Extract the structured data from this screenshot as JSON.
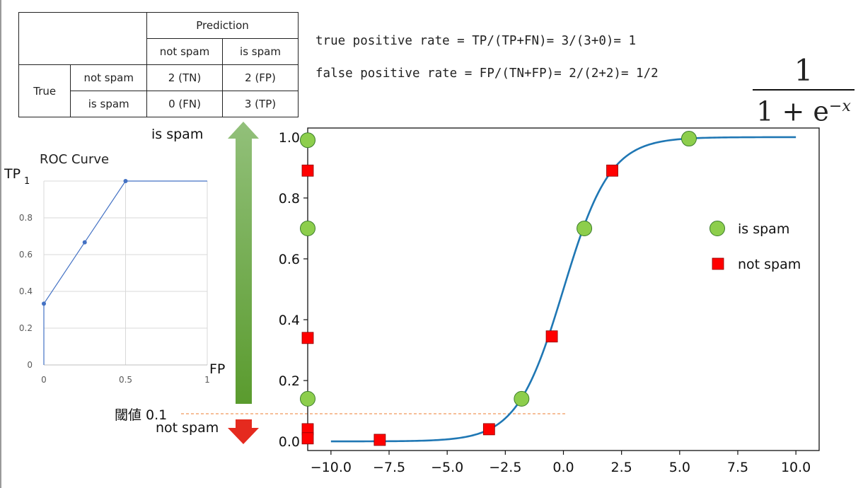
{
  "confusion_matrix": {
    "prediction_header": "Prediction",
    "pred_not_spam": "not spam",
    "pred_is_spam": "is spam",
    "true_header": "True",
    "row_not_spam": "not spam",
    "row_is_spam": "is spam",
    "tn": "2 (TN)",
    "fp": "2 (FP)",
    "fn": "0 (FN)",
    "tp": "3 (TP)"
  },
  "formulas": {
    "tpr": "true positive rate = TP/(TP+FN)= 3/(3+0)= 1",
    "fpr": "false positive rate = FP/(TN+FP)= 2/(2+2)= 1/2"
  },
  "sigmoid_formula": {
    "numerator": "1",
    "denominator_base": "1 + e",
    "denominator_exponent": "−x"
  },
  "arrow_labels": {
    "is_spam": "is spam",
    "not_spam": "not spam",
    "threshold": "閾値 0.1"
  },
  "colors": {
    "is_spam_marker": "#8dce4c",
    "not_spam_marker": "#ff0000",
    "sigmoid_curve": "#1f77b4",
    "roc_line": "#4472c4",
    "threshold_line": "#ed7d31",
    "up_arrow_top": "#92c07a",
    "up_arrow_bottom": "#5a9b2e",
    "down_arrow": "#e52a1f"
  },
  "chart_data": [
    {
      "type": "line",
      "title": "ROC Curve",
      "xlabel": "FP",
      "ylabel": "TP",
      "ylabel_subscript": "1",
      "xlim": [
        0,
        1
      ],
      "ylim": [
        0,
        1
      ],
      "x_ticks": [
        "0",
        "0.5",
        "1"
      ],
      "y_ticks": [
        "0",
        "0.2",
        "0.4",
        "0.6",
        "0.8",
        "1"
      ],
      "grid": true,
      "series": [
        {
          "x": [
            0,
            0,
            0.25,
            0.5,
            1
          ],
          "y": [
            0,
            0.333,
            0.667,
            1,
            1
          ],
          "markers": [
            [
              0,
              0.333
            ],
            [
              0.25,
              0.667
            ],
            [
              0.5,
              1
            ]
          ]
        }
      ]
    },
    {
      "type": "scatter",
      "xlim": [
        -11,
        11
      ],
      "ylim": [
        -0.03,
        1.03
      ],
      "x_ticks": [
        "−10.0",
        "−7.5",
        "−5.0",
        "−2.5",
        "0.0",
        "2.5",
        "5.0",
        "7.5",
        "10.0"
      ],
      "y_ticks": [
        "0.0",
        "0.2",
        "0.4",
        "0.6",
        "0.8",
        "1.0"
      ],
      "legend_position": "right",
      "threshold": 0.08,
      "sigmoid": {
        "x_start": -10,
        "x_end": 10
      },
      "series": [
        {
          "name": "is spam",
          "marker": "circle",
          "points": [
            [
              -11,
              0.99
            ],
            [
              -11,
              0.7
            ],
            [
              -11,
              0.14
            ],
            [
              -1.8,
              0.14
            ],
            [
              0.9,
              0.7
            ],
            [
              5.4,
              0.995
            ]
          ]
        },
        {
          "name": "not spam",
          "marker": "square",
          "points": [
            [
              -11,
              0.89
            ],
            [
              -11,
              0.34
            ],
            [
              -11,
              0.04
            ],
            [
              -11,
              0.01
            ],
            [
              -7.9,
              0.005
            ],
            [
              -3.2,
              0.04
            ],
            [
              -0.5,
              0.345
            ],
            [
              2.1,
              0.89
            ]
          ]
        }
      ]
    }
  ]
}
